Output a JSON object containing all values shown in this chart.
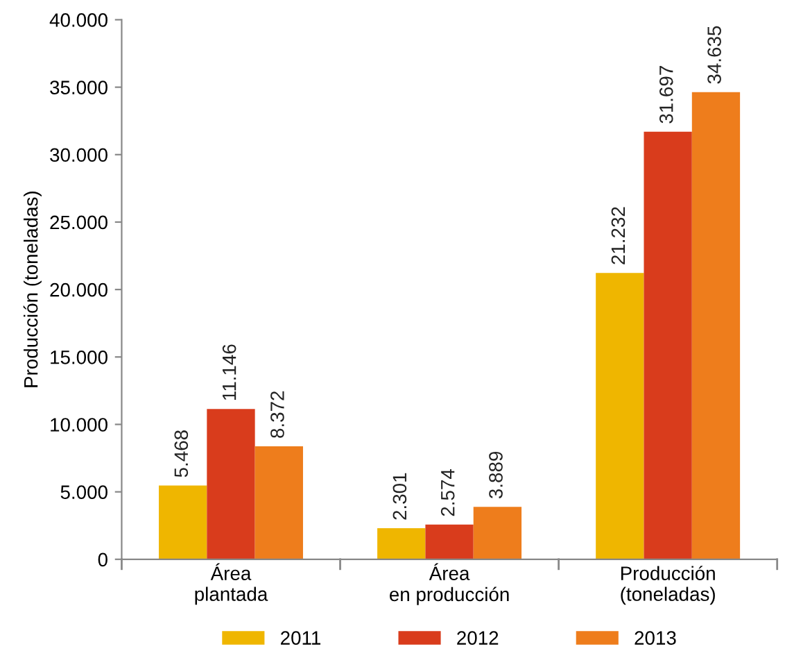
{
  "chart_data": {
    "type": "bar",
    "ylabel": "Producción (toneladas)",
    "categories": [
      "Área\nplantada",
      "Área\nen producción",
      "Producción\n(toneladas)"
    ],
    "series": [
      {
        "name": "2011",
        "color": "#efb600",
        "values": [
          5468,
          2301,
          21232
        ],
        "value_labels": [
          "5.468",
          "2.301",
          "21.232"
        ]
      },
      {
        "name": "2012",
        "color": "#d93c1c",
        "values": [
          11146,
          2574,
          31697
        ],
        "value_labels": [
          "11.146",
          "2.574",
          "31.697"
        ]
      },
      {
        "name": "2013",
        "color": "#ee7d1c",
        "values": [
          8372,
          3889,
          34635
        ],
        "value_labels": [
          "8.372",
          "3.889",
          "34.635"
        ]
      }
    ],
    "ylim": [
      0,
      40000
    ],
    "yticks": [
      0,
      {
        "value": 5000,
        "label": "5.000"
      },
      {
        "value": 10000,
        "label": "10.000"
      },
      {
        "value": 15000,
        "label": "15.000"
      },
      {
        "value": 20000,
        "label": "20.000"
      },
      {
        "value": 25000,
        "label": "25.000"
      },
      {
        "value": 30000,
        "label": "30.000"
      },
      {
        "value": 35000,
        "label": "35.000"
      },
      {
        "value": 40000,
        "label": "40.000"
      }
    ],
    "grid": false,
    "legend": "bottom"
  }
}
